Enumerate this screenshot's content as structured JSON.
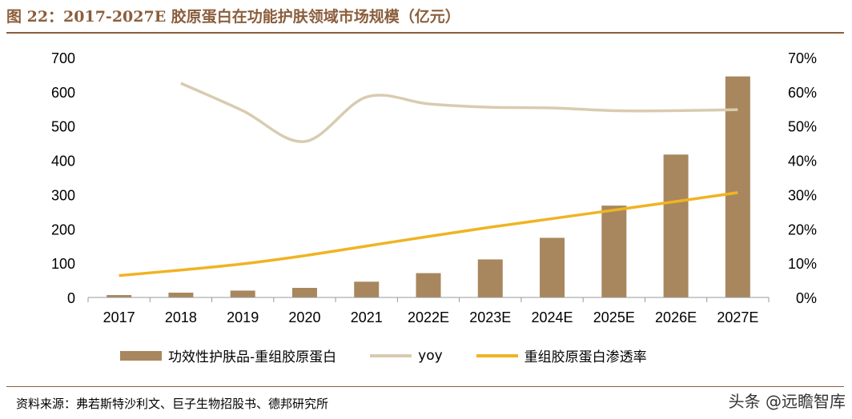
{
  "header": {
    "title": "图 22：2017-2027E 胶原蛋白在功能护肤领域市场规模（亿元）"
  },
  "footer": {
    "source": "资料来源：弗若斯特沙利文、巨子生物招股书、德邦研究所",
    "watermark": "头条 @远瞻智库"
  },
  "colors": {
    "bar": "#A8875E",
    "yoy": "#D9CBB0",
    "penetration": "#F0B323",
    "title": "#8B5E3C"
  },
  "chart_data": {
    "type": "bar",
    "categories": [
      "2017",
      "2018",
      "2019",
      "2020",
      "2021",
      "2022E",
      "2023E",
      "2024E",
      "2025E",
      "2026E",
      "2027E"
    ],
    "series": [
      {
        "name": "功效性护肤品-重组胶原蛋白",
        "type": "bar",
        "axis": "left",
        "values": [
          7,
          14,
          20,
          28,
          46,
          71,
          111,
          174,
          268,
          417,
          645
        ]
      },
      {
        "name": "yoy",
        "type": "line",
        "axis": "right",
        "values": [
          null,
          0.625,
          0.545,
          0.455,
          0.585,
          0.565,
          0.555,
          0.553,
          0.545,
          0.545,
          0.548
        ]
      },
      {
        "name": "重组胶原蛋白渗透率",
        "type": "line",
        "axis": "right",
        "values": [
          0.064,
          0.08,
          0.098,
          0.122,
          0.15,
          0.178,
          0.205,
          0.23,
          0.255,
          0.28,
          0.306
        ]
      }
    ],
    "y_left": {
      "min": 0,
      "max": 700,
      "ticks": [
        "0",
        "100",
        "200",
        "300",
        "400",
        "500",
        "600",
        "700"
      ]
    },
    "y_right": {
      "min": 0,
      "max": 0.7,
      "ticks": [
        "0%",
        "10%",
        "20%",
        "30%",
        "40%",
        "50%",
        "60%",
        "70%"
      ]
    },
    "grid": false,
    "legend_position": "bottom"
  }
}
